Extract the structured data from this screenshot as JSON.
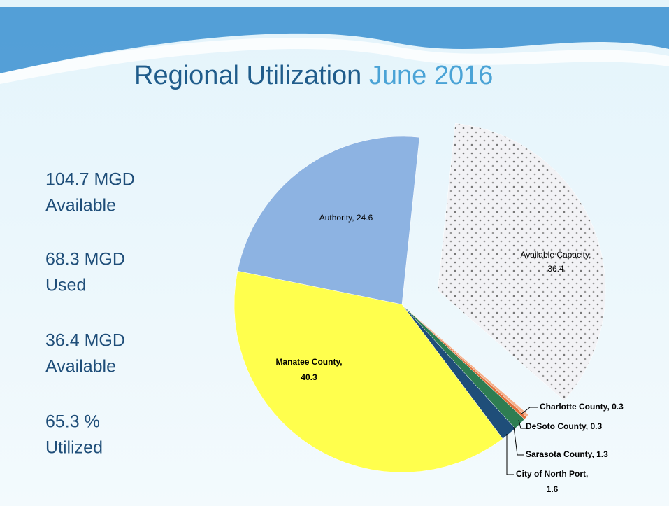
{
  "title": {
    "main": "Regional Utilization",
    "date": "June 2016"
  },
  "stats": [
    [
      "104.7 MGD",
      "Available"
    ],
    [
      "68.3 MGD",
      "Used"
    ],
    [
      "36.4 MGD",
      "Available"
    ],
    [
      "65.3 %",
      "Utilized"
    ]
  ],
  "chart_data": {
    "type": "pie",
    "values": [
      24.6,
      40.3,
      1.6,
      1.3,
      0.3,
      0.3,
      36.4
    ],
    "value_labels": [
      [
        "Authority, 24.6"
      ],
      [
        "Manatee County,",
        "40.3"
      ],
      [
        "City of North Port,",
        "1.6"
      ],
      [
        "Sarasota County, 1.3"
      ],
      [
        "DeSoto County, 0.3"
      ],
      [
        "Charlotte County, 0.3"
      ],
      [
        "Available Capacity,",
        "36.4"
      ]
    ],
    "colors": [
      "#8db3e2",
      "#ffff4d",
      "#1f4e79",
      "#2e7d52",
      "#e0703c",
      "#f4b08c",
      "url(#dots)"
    ]
  }
}
